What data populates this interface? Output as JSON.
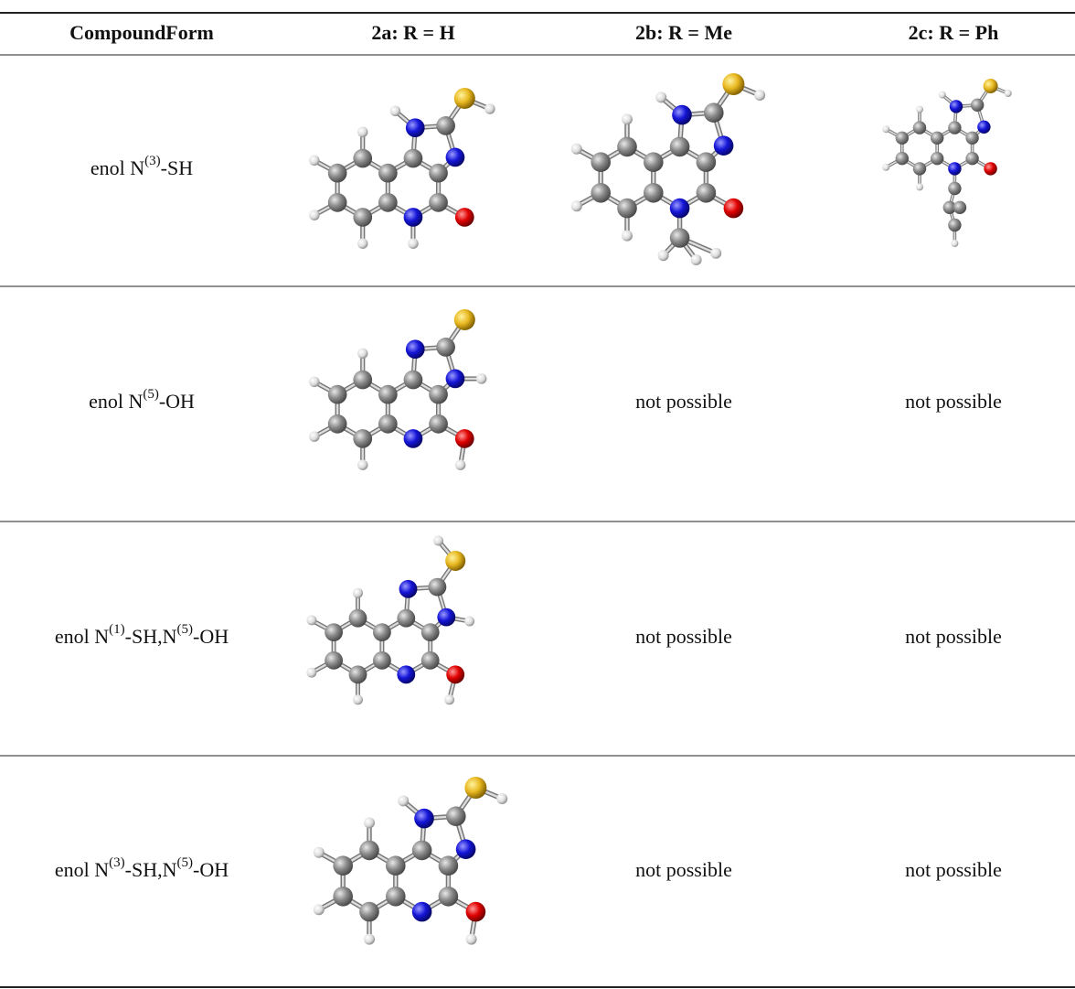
{
  "table": {
    "header": [
      "CompoundForm",
      "2a: R = H",
      "2b: R = Me",
      "2c: R = Ph"
    ],
    "rows": [
      {
        "form": [
          "enol N",
          "(3)",
          "-SH"
        ]
      },
      {
        "form": [
          "enol N",
          "(5)",
          "-OH"
        ],
        "cells": [
          "not possible",
          "not possible"
        ]
      },
      {
        "form": [
          "enol N",
          "(1)",
          "-SH,N",
          "(5)",
          "-OH"
        ],
        "cells": [
          "not possible",
          "not possible"
        ]
      },
      {
        "form": [
          "enol N",
          "(3)",
          "-SH,N",
          "(5)",
          "-OH"
        ],
        "cells": [
          "not possible",
          "not possible"
        ]
      }
    ]
  }
}
